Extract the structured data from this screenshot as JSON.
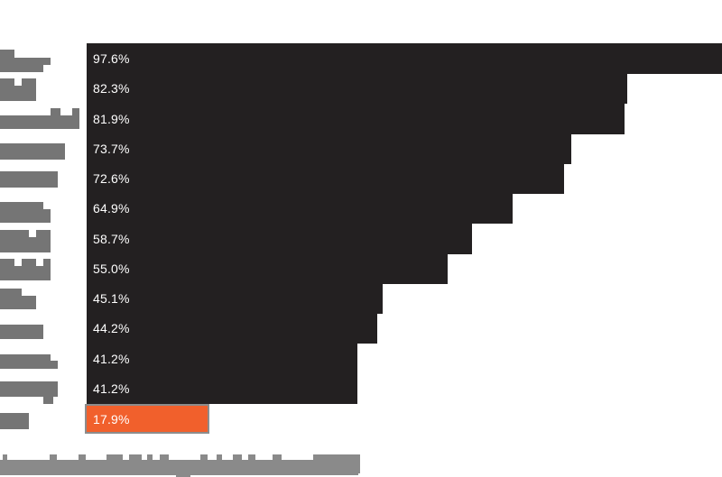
{
  "chart_data": {
    "type": "bar",
    "orientation": "horizontal",
    "title": "",
    "xlabel": "",
    "ylabel": "",
    "xlim": [
      0,
      100
    ],
    "grid": false,
    "legend": false,
    "value_labels": [
      "97.6%",
      "82.3%",
      "81.9%",
      "73.7%",
      "72.6%",
      "64.9%",
      "58.7%",
      "55.0%",
      "45.1%",
      "44.2%",
      "41.2%",
      "41.2%",
      "17.9%"
    ],
    "values": [
      97.6,
      82.3,
      81.9,
      73.7,
      72.6,
      64.9,
      58.7,
      55.0,
      45.1,
      44.2,
      41.2,
      41.2,
      17.9
    ],
    "highlighted_index": 12,
    "category_labels_redacted": true,
    "caption_redacted": true,
    "colors": {
      "bar": "#232021",
      "highlight": "#f1602c",
      "highlight_border": "#8c8c8c",
      "value_label": "#ffffff",
      "redacted_label": "#757575",
      "redacted_caption": "#8a8a8a"
    }
  },
  "redactions": {
    "label_rows": [
      [
        [
          0,
          55,
          16,
          10
        ],
        [
          0,
          64,
          56,
          8
        ],
        [
          0,
          71,
          48,
          9
        ]
      ],
      [
        [
          0,
          87,
          16,
          8
        ],
        [
          24,
          87,
          16,
          8
        ],
        [
          0,
          95,
          40,
          17
        ]
      ],
      [
        [
          56,
          120,
          11,
          8
        ],
        [
          80,
          120,
          8,
          8
        ],
        [
          0,
          128,
          88,
          15
        ]
      ],
      [
        [
          0,
          159,
          72,
          18
        ]
      ],
      [
        [
          0,
          190,
          64,
          18
        ]
      ],
      [
        [
          0,
          224,
          48,
          8
        ],
        [
          0,
          232,
          56,
          15
        ]
      ],
      [
        [
          0,
          255,
          32,
          8
        ],
        [
          40,
          255,
          16,
          8
        ],
        [
          0,
          263,
          56,
          17
        ]
      ],
      [
        [
          0,
          287,
          16,
          8
        ],
        [
          24,
          287,
          16,
          8
        ],
        [
          48,
          287,
          8,
          8
        ],
        [
          0,
          295,
          56,
          16
        ]
      ],
      [
        [
          0,
          320,
          24,
          8
        ],
        [
          0,
          328,
          40,
          15
        ]
      ],
      [
        [
          0,
          360,
          48,
          16
        ]
      ],
      [
        [
          0,
          393,
          56,
          7
        ],
        [
          0,
          400,
          64,
          9
        ]
      ],
      [
        [
          0,
          423,
          64,
          17
        ],
        [
          48,
          440,
          11,
          8
        ]
      ],
      [
        [
          0,
          458,
          32,
          18
        ]
      ]
    ],
    "caption_rects": [
      [
        0,
        510,
        397,
        17
      ],
      [
        3,
        504,
        5,
        6
      ],
      [
        55,
        504,
        8,
        6
      ],
      [
        87,
        504,
        8,
        6
      ],
      [
        118,
        504,
        18,
        6
      ],
      [
        143,
        504,
        14,
        6
      ],
      [
        163,
        504,
        6,
        6
      ],
      [
        177,
        504,
        10,
        6
      ],
      [
        222,
        504,
        8,
        6
      ],
      [
        240,
        504,
        6,
        6
      ],
      [
        258,
        504,
        10,
        6
      ],
      [
        275,
        504,
        8,
        6
      ],
      [
        302,
        504,
        10,
        6
      ],
      [
        347,
        504,
        52,
        21
      ],
      [
        195,
        527,
        16,
        2
      ]
    ]
  }
}
